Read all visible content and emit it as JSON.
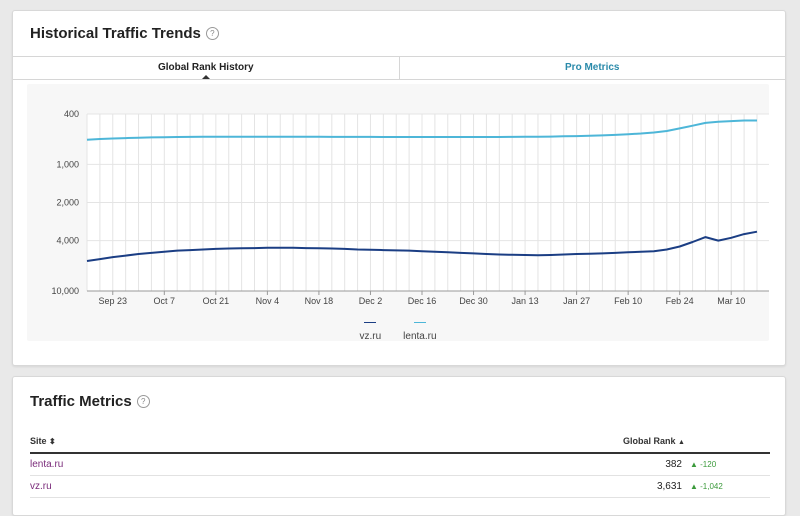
{
  "historical": {
    "title": "Historical Traffic Trends",
    "help_icon": "question-circle-icon",
    "tabs": {
      "global_rank": "Global Rank History",
      "pro_metrics": "Pro Metrics"
    }
  },
  "chart_data": {
    "type": "line",
    "y_scale": "log-inverted",
    "ylim": [
      400,
      10000
    ],
    "y_ticks": [
      "400",
      "1,000",
      "2,000",
      "4,000",
      "10,000"
    ],
    "x_ticks": [
      "Sep 23",
      "Oct 7",
      "Oct 21",
      "Nov 4",
      "Nov 18",
      "Dec 2",
      "Dec 16",
      "Dec 30",
      "Jan 13",
      "Jan 27",
      "Feb 10",
      "Feb 24",
      "Mar 10"
    ],
    "grid": true,
    "legend_position": "bottom",
    "series": [
      {
        "name": "vz.ru",
        "color": "#1b3e84",
        "values": [
          5800,
          5600,
          5400,
          5250,
          5100,
          5000,
          4900,
          4800,
          4750,
          4700,
          4650,
          4620,
          4600,
          4580,
          4560,
          4550,
          4560,
          4580,
          4600,
          4620,
          4650,
          4700,
          4720,
          4750,
          4780,
          4800,
          4850,
          4900,
          4950,
          5000,
          5050,
          5100,
          5150,
          5180,
          5200,
          5220,
          5200,
          5150,
          5100,
          5080,
          5050,
          5000,
          4950,
          4900,
          4850,
          4700,
          4450,
          4100,
          3750,
          4000,
          3800,
          3550,
          3400
        ]
      },
      {
        "name": "lenta.ru",
        "color": "#4db6d8",
        "values": [
          640,
          630,
          625,
          620,
          615,
          612,
          610,
          608,
          607,
          606,
          606,
          605,
          605,
          605,
          605,
          606,
          606,
          606,
          606,
          607,
          607,
          607,
          607,
          608,
          608,
          608,
          608,
          608,
          608,
          608,
          608,
          608,
          608,
          607,
          606,
          605,
          603,
          600,
          598,
          595,
          590,
          585,
          578,
          570,
          560,
          545,
          520,
          495,
          470,
          460,
          455,
          450,
          450
        ]
      }
    ]
  },
  "traffic_metrics": {
    "title": "Traffic Metrics",
    "help_icon": "question-circle-icon",
    "columns": {
      "site": "Site",
      "global_rank": "Global Rank"
    },
    "sort_icons": {
      "site": "⬍",
      "rank": "▲"
    },
    "rows": [
      {
        "site": "lenta.ru",
        "rank": "382",
        "delta": "▲ -120"
      },
      {
        "site": "vz.ru",
        "rank": "3,631",
        "delta": "▲ -1,042"
      }
    ]
  }
}
